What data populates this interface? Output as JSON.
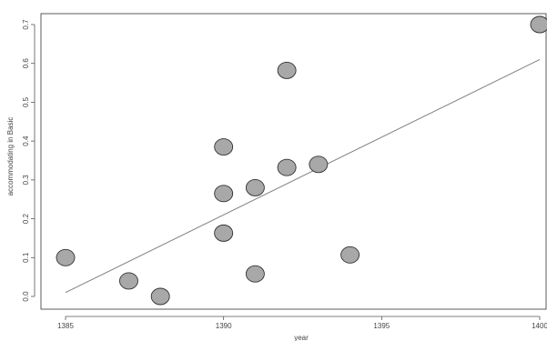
{
  "chart_data": {
    "type": "scatter",
    "xlabel": "year",
    "ylabel": "accommodating in Basic",
    "xlim": [
      1385,
      1400
    ],
    "ylim": [
      0,
      0.7
    ],
    "x_ticks": [
      1385,
      1390,
      1395,
      1400
    ],
    "y_ticks": [
      0.0,
      0.1,
      0.2,
      0.3,
      0.4,
      0.5,
      0.6,
      0.7
    ],
    "x_tick_labels": [
      "1385",
      "1390",
      "1395",
      "1400"
    ],
    "y_tick_labels": [
      "0.0",
      "0.1",
      "0.2",
      "0.3",
      "0.4",
      "0.5",
      "0.6",
      "0.7"
    ],
    "points": [
      {
        "x": 1385,
        "y": 0.1
      },
      {
        "x": 1387,
        "y": 0.04
      },
      {
        "x": 1388,
        "y": 0.0
      },
      {
        "x": 1390,
        "y": 0.385
      },
      {
        "x": 1390,
        "y": 0.265
      },
      {
        "x": 1390,
        "y": 0.163
      },
      {
        "x": 1391,
        "y": 0.28
      },
      {
        "x": 1391,
        "y": 0.058
      },
      {
        "x": 1392,
        "y": 0.582
      },
      {
        "x": 1392,
        "y": 0.332
      },
      {
        "x": 1393,
        "y": 0.34
      },
      {
        "x": 1394,
        "y": 0.107
      },
      {
        "x": 1400,
        "y": 0.7
      }
    ],
    "fit_line": {
      "x": [
        1385,
        1400
      ],
      "y": [
        0.01,
        0.61
      ]
    },
    "grid": false,
    "point_color": "#a8a8a8",
    "line_color": "#808080"
  }
}
